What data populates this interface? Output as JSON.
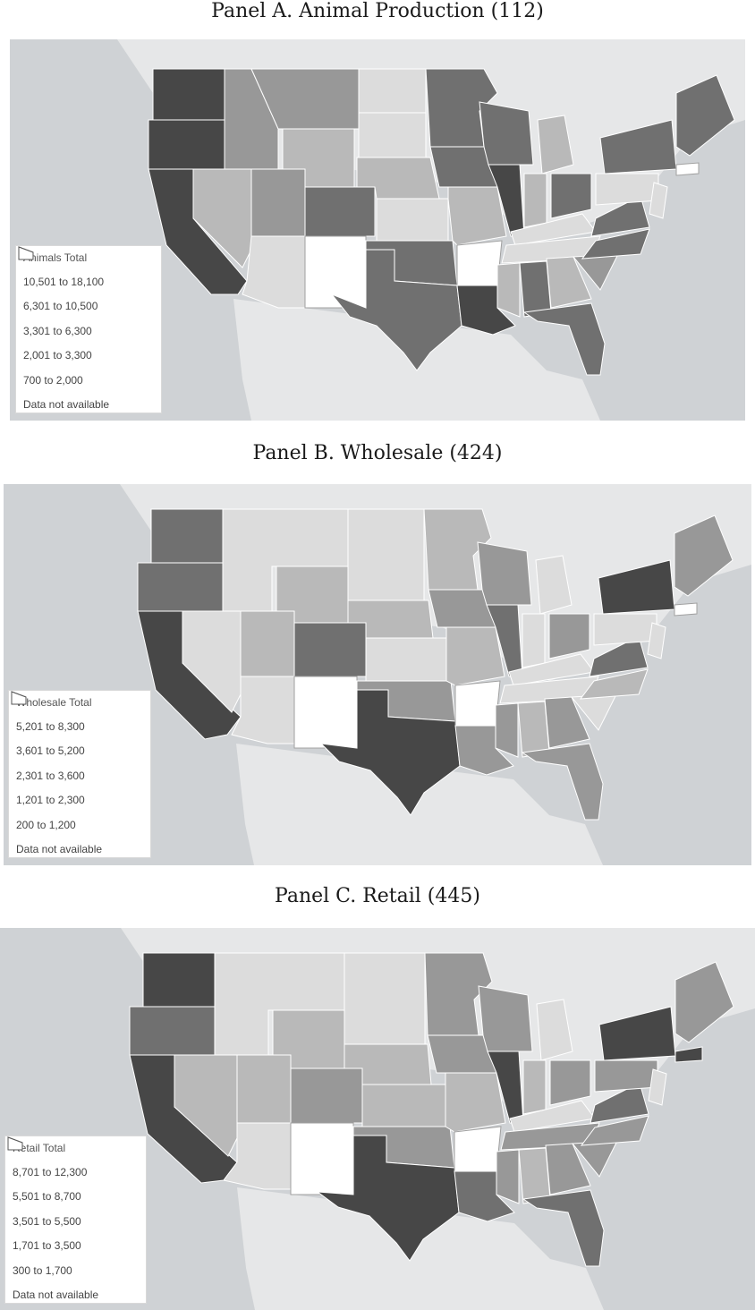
{
  "panels": [
    {
      "title": "Panel A. Animal Production (112)",
      "legend": {
        "title": "Animals Total",
        "classes": [
          {
            "label": "10,501 to 18,100",
            "color": "#474747"
          },
          {
            "label": "6,301 to 10,500",
            "color": "#707070"
          },
          {
            "label": "3,301 to 6,300",
            "color": "#989898"
          },
          {
            "label": "2,001 to 3,300",
            "color": "#b9b9b9"
          },
          {
            "label": "700 to 2,000",
            "color": "#dcdcdc"
          },
          {
            "label": "Data not available",
            "color": "#ffffff"
          }
        ]
      }
    },
    {
      "title": "Panel B. Wholesale (424)",
      "legend": {
        "title": "Wholesale Total",
        "classes": [
          {
            "label": "5,201 to 8,300",
            "color": "#474747"
          },
          {
            "label": "3,601 to 5,200",
            "color": "#707070"
          },
          {
            "label": "2,301 to 3,600",
            "color": "#989898"
          },
          {
            "label": "1,201 to 2,300",
            "color": "#b9b9b9"
          },
          {
            "label": "200 to 1,200",
            "color": "#dcdcdc"
          },
          {
            "label": "Data not available",
            "color": "#ffffff"
          }
        ]
      }
    },
    {
      "title": "Panel C. Retail (445)",
      "legend": {
        "title": "Retail Total",
        "classes": [
          {
            "label": "8,701 to 12,300",
            "color": "#474747"
          },
          {
            "label": "5,501 to 8,700",
            "color": "#707070"
          },
          {
            "label": "3,501 to 5,500",
            "color": "#989898"
          },
          {
            "label": "1,701 to 3,500",
            "color": "#b9b9b9"
          },
          {
            "label": "300 to 1,700",
            "color": "#dcdcdc"
          },
          {
            "label": "Data not available",
            "color": "#ffffff"
          }
        ]
      }
    }
  ]
}
